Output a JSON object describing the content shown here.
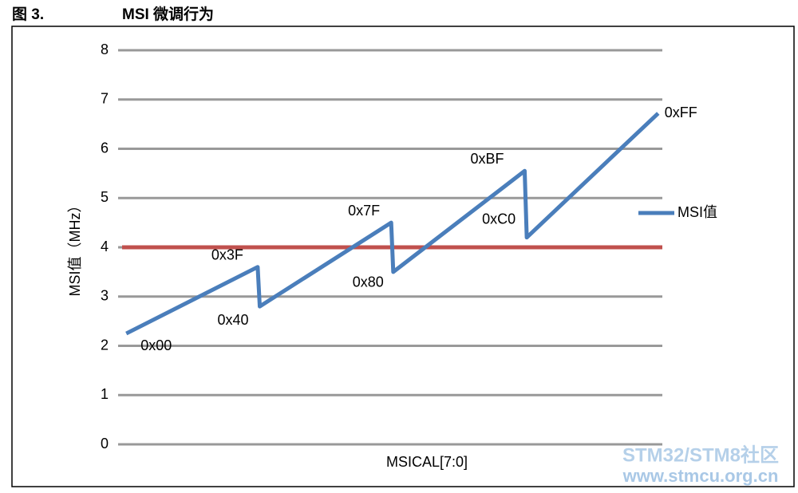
{
  "figure_label": "图 3.",
  "chart_data": {
    "type": "line",
    "title": "MSI 微调行为",
    "x_label": "MSICAL[7:0]",
    "y_label": "MSI值（MHz）",
    "x": [
      0,
      63,
      64,
      127,
      128,
      191,
      192,
      255
    ],
    "point_labels": [
      "0x00",
      "0x3F",
      "0x40",
      "0x7F",
      "0x80",
      "0xBF",
      "0xC0",
      "0xFF"
    ],
    "series": [
      {
        "name": "MSI值",
        "color": "#4a7ebb",
        "values": [
          2.25,
          3.6,
          2.8,
          4.5,
          3.5,
          5.55,
          4.2,
          6.72
        ]
      }
    ],
    "hlines": [
      {
        "value": 4,
        "color": "#c0504d"
      }
    ],
    "xlim": [
      -2,
      257
    ],
    "ylim": [
      0,
      8
    ],
    "yticks": [
      0,
      1,
      2,
      3,
      4,
      5,
      6,
      7,
      8
    ],
    "grid": true,
    "legend": "right"
  },
  "watermark": {
    "line1": "STM32/STM8社区",
    "line2": "www.stmcu.org.cn"
  }
}
